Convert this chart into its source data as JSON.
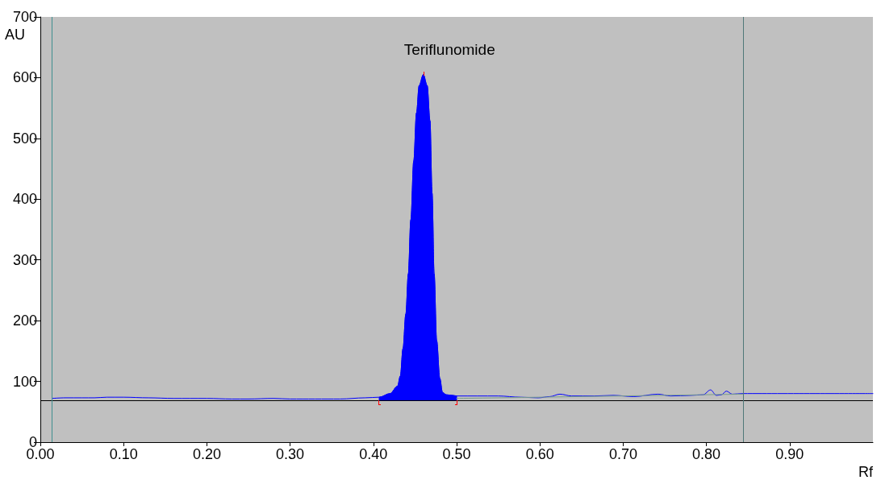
{
  "chart_data": {
    "type": "line",
    "xlabel": "Rf",
    "ylabel": "AU",
    "annotations": [
      {
        "text": "Teriflunomide",
        "x": 0.46,
        "y": 605
      }
    ],
    "xlim": [
      0,
      1.0
    ],
    "xticks": [
      {
        "value": 0,
        "label": "0.00"
      },
      {
        "value": 0.1,
        "label": "0.10"
      },
      {
        "value": 0.2,
        "label": "0.20"
      },
      {
        "value": 0.3,
        "label": "0.30"
      },
      {
        "value": 0.4,
        "label": "0.40"
      },
      {
        "value": 0.5,
        "label": "0.50"
      },
      {
        "value": 0.6,
        "label": "0.60"
      },
      {
        "value": 0.7,
        "label": "0.70"
      },
      {
        "value": 0.8,
        "label": "0.80"
      },
      {
        "value": 0.9,
        "label": "0.90"
      }
    ],
    "ylim": [
      0,
      700
    ],
    "yticks": [
      0,
      100,
      200,
      300,
      400,
      500,
      600,
      700
    ],
    "grid": false,
    "marker": "none",
    "line_style": "solid",
    "ref_lines": [
      {
        "axis": "y",
        "value": 69,
        "color": "#000000"
      },
      {
        "axis": "x",
        "value": 0.014,
        "color": "#3f8f8f"
      },
      {
        "axis": "x",
        "value": 0.844,
        "color": "#4f7878"
      }
    ],
    "series": [
      {
        "type": "line",
        "color": "#0000ff",
        "x": [
          0.014,
          0.03,
          0.05,
          0.065,
          0.08,
          0.1,
          0.13,
          0.16,
          0.2,
          0.23,
          0.25,
          0.28,
          0.3,
          0.33,
          0.36,
          0.39,
          0.407,
          0.42,
          0.429,
          0.4324,
          0.4356,
          0.439,
          0.442,
          0.445,
          0.4485,
          0.4518,
          0.455,
          0.46,
          0.4646,
          0.468,
          0.4705,
          0.473,
          0.476,
          0.4798,
          0.483,
          0.4875,
          0.495,
          0.5,
          0.55,
          0.577,
          0.598,
          0.612,
          0.624,
          0.638,
          0.665,
          0.688,
          0.713,
          0.742,
          0.757,
          0.781,
          0.796,
          0.805,
          0.812,
          0.818,
          0.824,
          0.831,
          0.844,
          1.0
        ],
        "values": [
          72,
          73,
          73,
          73,
          74,
          74,
          73,
          72,
          72,
          71,
          71,
          72,
          71,
          71,
          71,
          73,
          74,
          80,
          92,
          109,
          154,
          211,
          277,
          366,
          463,
          542,
          587,
          605,
          587,
          529,
          410,
          277,
          167,
          105,
          82,
          78,
          77,
          76,
          76,
          74,
          73,
          75,
          79,
          76,
          76,
          77,
          75,
          79,
          76,
          77,
          78,
          86,
          77,
          78,
          84,
          79,
          80,
          80
        ]
      },
      {
        "type": "area",
        "color": "#0000ff",
        "x": [
          0.407,
          0.407,
          0.42,
          0.429,
          0.4324,
          0.4356,
          0.439,
          0.442,
          0.445,
          0.4485,
          0.4518,
          0.455,
          0.46,
          0.4646,
          0.468,
          0.4705,
          0.473,
          0.476,
          0.4798,
          0.483,
          0.4875,
          0.495,
          0.5,
          0.5
        ],
        "values": [
          69,
          74,
          80,
          92,
          109,
          154,
          211,
          277,
          366,
          463,
          542,
          587,
          605,
          587,
          529,
          410,
          277,
          167,
          105,
          82,
          78,
          77,
          76,
          69
        ]
      },
      {
        "type": "line",
        "color": "#7a9f8c",
        "x": [
          0.5,
          0.844
        ],
        "values": [
          72,
          79
        ]
      }
    ]
  }
}
